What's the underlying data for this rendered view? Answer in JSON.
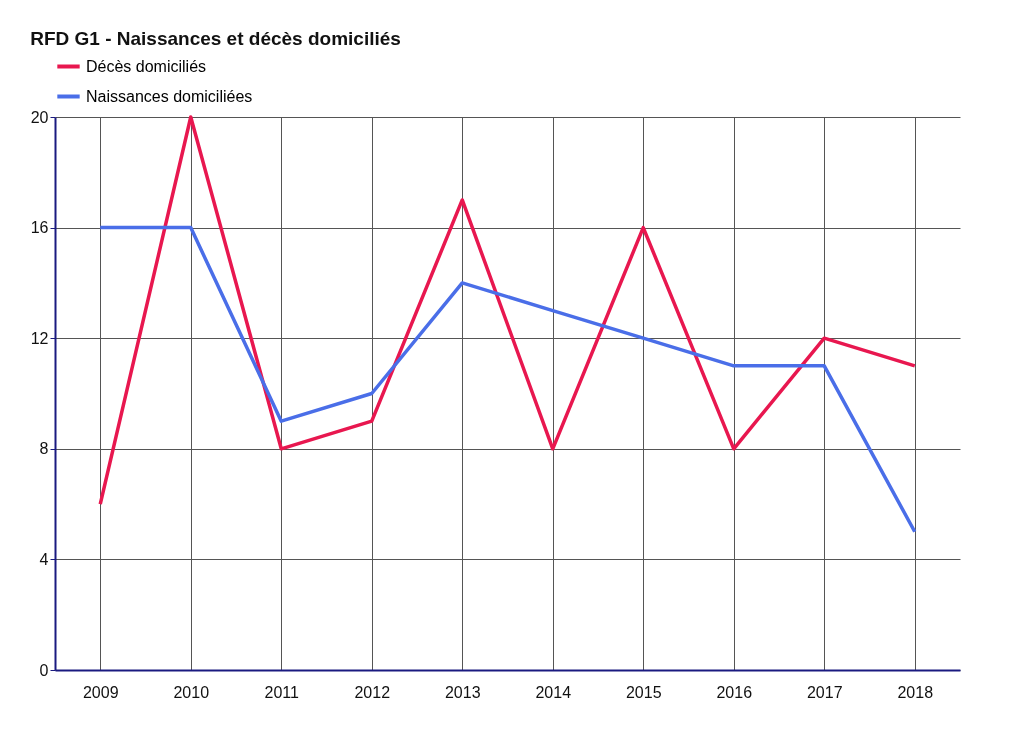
{
  "chart_data": {
    "type": "line",
    "title": "RFD G1 - Naissances et décès domiciliés",
    "categories": [
      "2009",
      "2010",
      "2011",
      "2012",
      "2013",
      "2014",
      "2015",
      "2016",
      "2017",
      "2018"
    ],
    "series": [
      {
        "name": "Décès domiciliés",
        "color": "#e8174f",
        "values": [
          6,
          20,
          8,
          9,
          17,
          8,
          16,
          8,
          12,
          11
        ]
      },
      {
        "name": "Naissances domiciliées",
        "color": "#4a6ee8",
        "values": [
          16,
          16,
          9,
          10,
          14,
          13,
          12,
          11,
          11,
          5
        ]
      }
    ],
    "ylim": [
      0,
      20
    ],
    "yticks": [
      0,
      4,
      8,
      12,
      16,
      20
    ],
    "grid": true,
    "legend": "top left",
    "marker": "none",
    "line_style": "solid"
  }
}
